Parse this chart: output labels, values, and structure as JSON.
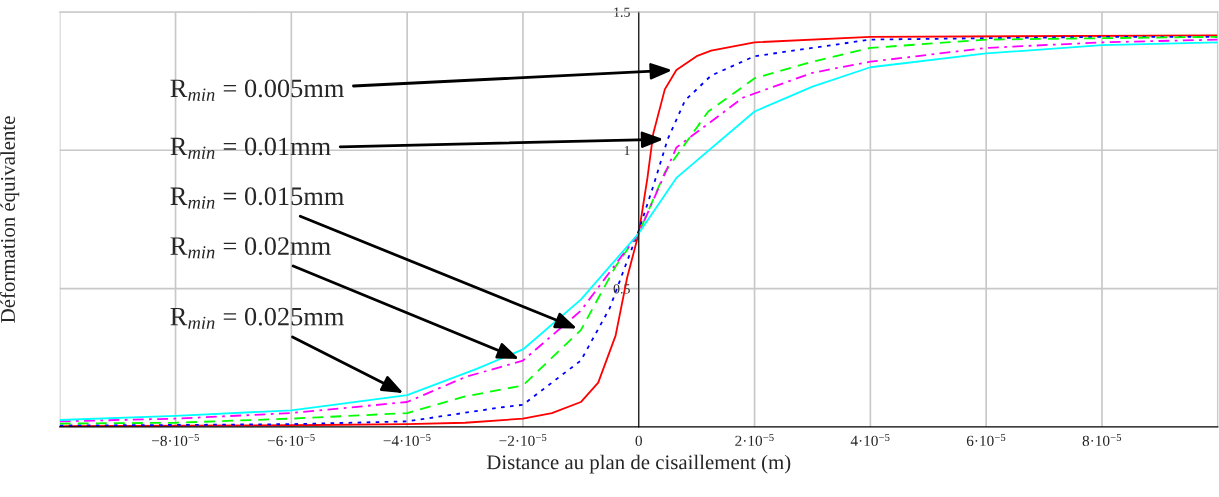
{
  "chart_data": {
    "type": "line",
    "xlabel": "Distance au plan de cisaillement (m)",
    "ylabel": "Déformation équivalente",
    "xlim": [
      -0.0001,
      0.0001
    ],
    "ylim": [
      0,
      1.5
    ],
    "xticks": [
      {
        "value": -0.0001,
        "label": null
      },
      {
        "value": -8e-05,
        "label": "−8·10$^{−5}$"
      },
      {
        "value": -6e-05,
        "label": "−6·10$^{−5}$"
      },
      {
        "value": -4e-05,
        "label": "−4·10$^{−5}$"
      },
      {
        "value": -2e-05,
        "label": "−2·10$^{−5}$"
      },
      0,
      {
        "value": 2e-05,
        "label": "2·10$^{−5}$"
      },
      {
        "value": 4e-05,
        "label": "4·10$^{−5}$"
      },
      {
        "value": 6e-05,
        "label": "6·10$^{−5}$"
      },
      {
        "value": 8e-05,
        "label": "8·10$^{−5}$"
      },
      {
        "value": 0.0001,
        "label": null
      }
    ],
    "yticks": [
      0.5,
      1,
      1.5
    ],
    "grid": true,
    "legend": false,
    "series": [
      {
        "color": "#ff0000",
        "line_style": "solid",
        "x": [
          -0.0001,
          -6e-05,
          -4e-05,
          -3e-05,
          -2e-05,
          -1.5e-05,
          -1e-05,
          -7e-06,
          -4e-06,
          -2e-06,
          0,
          1.5e-06,
          2.5e-06,
          4.5e-06,
          6.5e-06,
          1e-05,
          1.25e-05,
          2e-05,
          4e-05,
          0.0001
        ],
        "values": [
          0.003,
          0.006,
          0.01,
          0.015,
          0.03,
          0.05,
          0.09,
          0.16,
          0.33,
          0.54,
          0.7,
          0.9,
          1.06,
          1.22,
          1.29,
          1.34,
          1.36,
          1.39,
          1.41,
          1.415
        ]
      },
      {
        "color": "#0000ff",
        "line_style": "dotted",
        "x": [
          -0.0001,
          -8e-05,
          -6e-05,
          -4e-05,
          -2.4e-05,
          -2e-05,
          -1e-05,
          -5e-06,
          -2e-06,
          0,
          2.5e-06,
          5e-06,
          8e-06,
          1.25e-05,
          2e-05,
          3e-05,
          4e-05,
          8e-05,
          0.0001
        ],
        "values": [
          0.005,
          0.007,
          0.01,
          0.02,
          0.07,
          0.08,
          0.24,
          0.43,
          0.6,
          0.71,
          0.87,
          1.04,
          1.18,
          1.27,
          1.34,
          1.37,
          1.4,
          1.41,
          1.41
        ]
      },
      {
        "color": "#00ff00",
        "line_style": "dashed",
        "x": [
          -0.0001,
          -8e-05,
          -6e-05,
          -4e-05,
          -3e-05,
          -2e-05,
          -1e-05,
          -4e-06,
          0,
          4.5e-06,
          1.2e-05,
          2e-05,
          3e-05,
          4e-05,
          6e-05,
          0.0001
        ],
        "values": [
          0.012,
          0.015,
          0.03,
          0.05,
          0.11,
          0.15,
          0.35,
          0.58,
          0.7,
          0.92,
          1.14,
          1.26,
          1.32,
          1.37,
          1.4,
          1.41
        ]
      },
      {
        "color": "#ff00ff",
        "line_style": "dashdot",
        "x": [
          -0.0001,
          -8e-05,
          -6e-05,
          -4e-05,
          -3e-05,
          -2e-05,
          -1e-05,
          0,
          6.5e-06,
          1.8e-05,
          3e-05,
          4e-05,
          6e-05,
          8e-05,
          0.0001
        ],
        "values": [
          0.02,
          0.03,
          0.05,
          0.09,
          0.18,
          0.24,
          0.42,
          0.7,
          1.01,
          1.19,
          1.28,
          1.32,
          1.37,
          1.39,
          1.4
        ]
      },
      {
        "color": "#00ffff",
        "line_style": "solid",
        "x": [
          -0.0001,
          -8e-05,
          -6e-05,
          -4e-05,
          -2.8e-05,
          -2e-05,
          -1e-05,
          -5e-06,
          0,
          6.5e-06,
          2e-05,
          3e-05,
          4e-05,
          6e-05,
          8e-05,
          0.0001
        ],
        "values": [
          0.025,
          0.04,
          0.06,
          0.115,
          0.21,
          0.28,
          0.46,
          0.58,
          0.7,
          0.9,
          1.14,
          1.23,
          1.3,
          1.35,
          1.38,
          1.39
        ]
      }
    ],
    "annotations": [
      {
        "text": "R$_{min}$ = 0.005mm",
        "x": 6.5e-06,
        "y": 1.29
      },
      {
        "text": "R$_{min}$ = 0.01mm",
        "x": 5e-06,
        "y": 1.04
      },
      {
        "text": "R$_{min}$ = 0.015mm",
        "x": -1e-05,
        "y": 0.35
      },
      {
        "text": "R$_{min}$ = 0.02mm",
        "x": -2e-05,
        "y": 0.24
      },
      {
        "text": "R$_{min}$ = 0.025mm",
        "x": -4e-05,
        "y": 0.115
      }
    ]
  }
}
